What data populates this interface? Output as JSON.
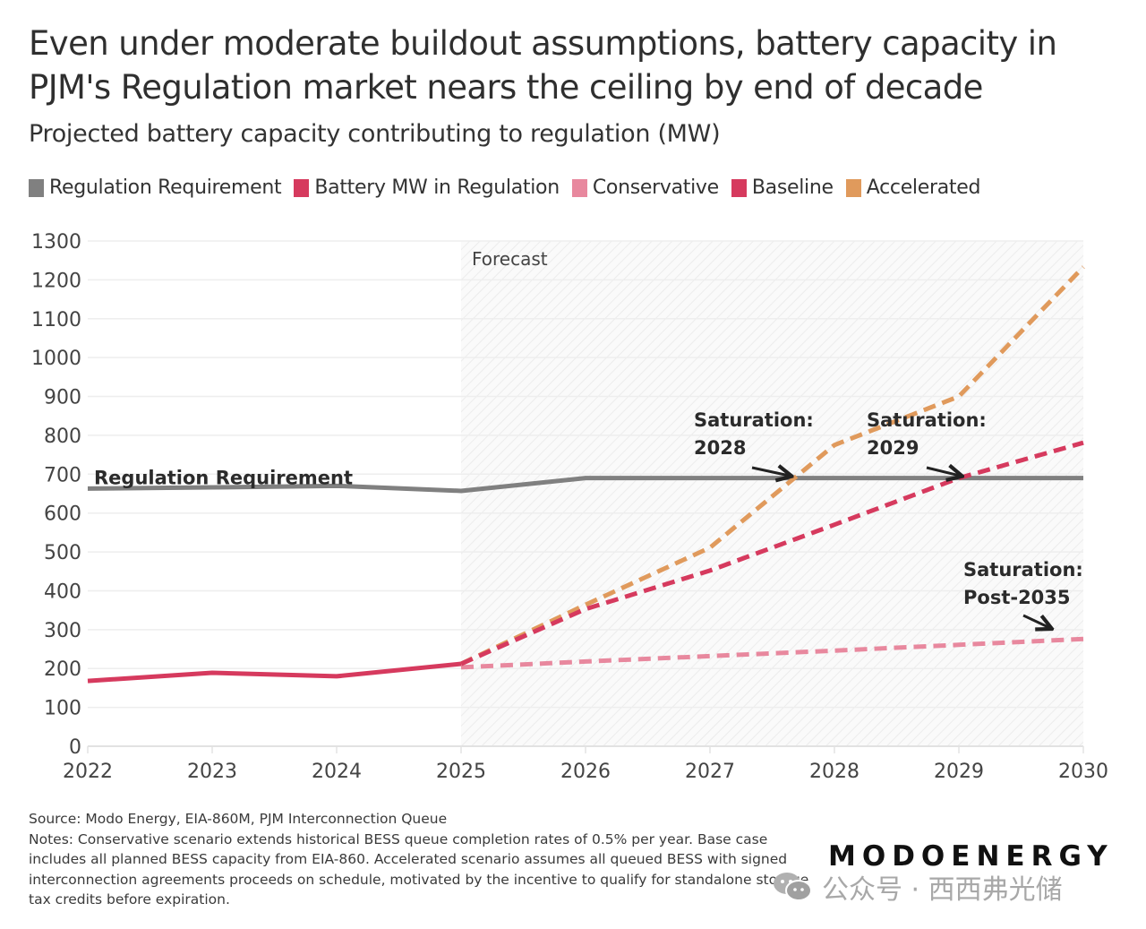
{
  "header": {
    "title": "Even under moderate buildout assumptions, battery capacity in PJM's Regulation market nears the ceiling by end of decade",
    "subtitle": "Projected battery capacity contributing to regulation (MW)"
  },
  "legend": [
    {
      "label": "Regulation Requirement",
      "color": "#808080"
    },
    {
      "label": "Battery MW in Regulation",
      "color": "#d63a5e"
    },
    {
      "label": "Conservative",
      "color": "#e8889e"
    },
    {
      "label": "Baseline",
      "color": "#d63a5e"
    },
    {
      "label": "Accelerated",
      "color": "#e09a5c"
    }
  ],
  "chart_data": {
    "type": "line",
    "title": "Even under moderate buildout assumptions, battery capacity in PJM's Regulation market nears the ceiling by end of decade",
    "subtitle": "Projected battery capacity contributing to regulation (MW)",
    "xlabel": "",
    "ylabel": "MW",
    "x": [
      2022,
      2023,
      2024,
      2025,
      2026,
      2027,
      2028,
      2029,
      2030
    ],
    "x_ticks": [
      "2022",
      "2023",
      "2024",
      "2025",
      "2026",
      "2027",
      "2028",
      "2029",
      "2030"
    ],
    "y_ticks": [
      "0",
      "100",
      "200",
      "300",
      "400",
      "500",
      "600",
      "700",
      "800",
      "900",
      "1000",
      "1100",
      "1200",
      "1300"
    ],
    "ylim": [
      0,
      1300
    ],
    "xlim": [
      2022,
      2030
    ],
    "grid": true,
    "legend_position": "top-left",
    "forecast_region": {
      "from": 2025,
      "to": 2030,
      "label": "Forecast"
    },
    "series": [
      {
        "name": "Regulation Requirement",
        "color": "#808080",
        "style": "solid",
        "x": [
          2022,
          2023,
          2024,
          2025,
          2026,
          2027,
          2028,
          2029,
          2030
        ],
        "values": [
          663,
          666,
          670,
          657,
          690,
          690,
          690,
          690,
          690
        ],
        "inline_label": "Regulation Requirement"
      },
      {
        "name": "Battery MW in Regulation",
        "color": "#d63a5e",
        "style": "solid",
        "x": [
          2022,
          2023,
          2024,
          2025
        ],
        "values": [
          168,
          189,
          180,
          212
        ]
      },
      {
        "name": "Conservative",
        "color": "#e8889e",
        "style": "dashed",
        "x": [
          2025,
          2026,
          2027,
          2028,
          2029,
          2030
        ],
        "values": [
          203,
          218,
          232,
          246,
          261,
          276
        ]
      },
      {
        "name": "Baseline",
        "color": "#d63a5e",
        "style": "dashed",
        "x": [
          2025,
          2026,
          2027,
          2028,
          2029,
          2030
        ],
        "values": [
          212,
          353,
          452,
          570,
          690,
          781
        ]
      },
      {
        "name": "Accelerated",
        "color": "#e09a5c",
        "style": "dashed",
        "x": [
          2025,
          2026,
          2027,
          2028,
          2029,
          2030
        ],
        "values": [
          212,
          364,
          511,
          775,
          900,
          1233
        ]
      }
    ],
    "annotations": [
      {
        "lines": [
          "Saturation:",
          "2028"
        ],
        "points_to": {
          "x": 2027.7,
          "y": 690
        }
      },
      {
        "lines": [
          "Saturation:",
          "2029"
        ],
        "points_to": {
          "x": 2029.05,
          "y": 690
        }
      },
      {
        "lines": [
          "Saturation:",
          "Post-2035"
        ],
        "points_to": {
          "x": 2029.75,
          "y": 300
        }
      }
    ]
  },
  "footer": {
    "source": "Source: Modo Energy, EIA-860M, PJM Interconnection Queue",
    "notes": "Notes: Conservative scenario extends historical BESS queue completion rates of 0.5% per year. Base case includes all planned BESS capacity from EIA-860. Accelerated scenario assumes all queued BESS with signed interconnection agreements proceeds on schedule, motivated by the incentive to qualify for standalone storage tax credits before expiration.",
    "brand": "MODOENERGY",
    "watermark": "公众号 · 西西弗光储"
  }
}
